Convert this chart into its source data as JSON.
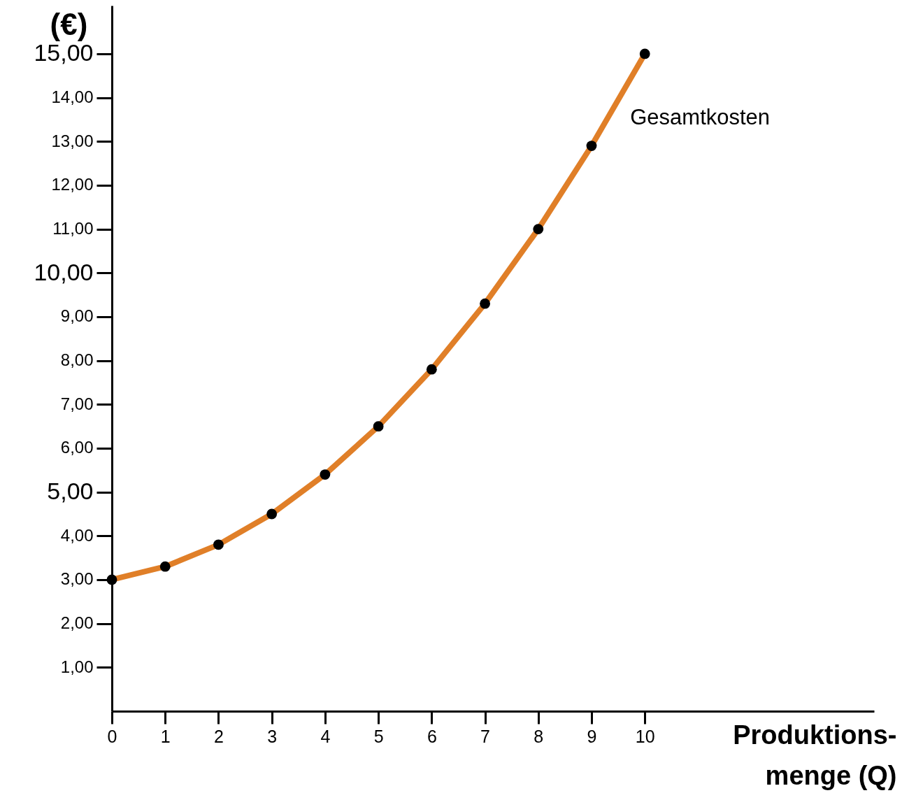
{
  "chart_data": {
    "type": "line",
    "xlabel": "Produktions-\nmenge (Q)",
    "ylabel": "(€)",
    "x": [
      0,
      1,
      2,
      3,
      4,
      5,
      6,
      7,
      8,
      9,
      10
    ],
    "series": [
      {
        "name": "Gesamtkosten",
        "color": "#e07f28",
        "values": [
          3.0,
          3.3,
          3.8,
          4.5,
          5.4,
          6.5,
          7.8,
          9.3,
          11.0,
          12.9,
          15.0
        ]
      }
    ],
    "xlim": [
      0,
      14.3
    ],
    "ylim": [
      0,
      16.1
    ],
    "xticks": [
      0,
      1,
      2,
      3,
      4,
      5,
      6,
      7,
      8,
      9,
      10
    ],
    "yticks": [
      {
        "value": 1,
        "label": "1,00"
      },
      {
        "value": 2,
        "label": "2,00"
      },
      {
        "value": 3,
        "label": "3,00"
      },
      {
        "value": 4,
        "label": "4,00"
      },
      {
        "value": 5,
        "label": "5,00"
      },
      {
        "value": 6,
        "label": "6,00"
      },
      {
        "value": 7,
        "label": "7,00"
      },
      {
        "value": 8,
        "label": "8,00"
      },
      {
        "value": 9,
        "label": "9,00"
      },
      {
        "value": 10,
        "label": "10,00"
      },
      {
        "value": 11,
        "label": "11,00"
      },
      {
        "value": 12,
        "label": "12,00"
      },
      {
        "value": 13,
        "label": "13,00"
      },
      {
        "value": 14,
        "label": "14,00"
      },
      {
        "value": 15,
        "label": "15,00"
      }
    ],
    "marker": "circle",
    "line_style": "solid",
    "grid": false
  }
}
